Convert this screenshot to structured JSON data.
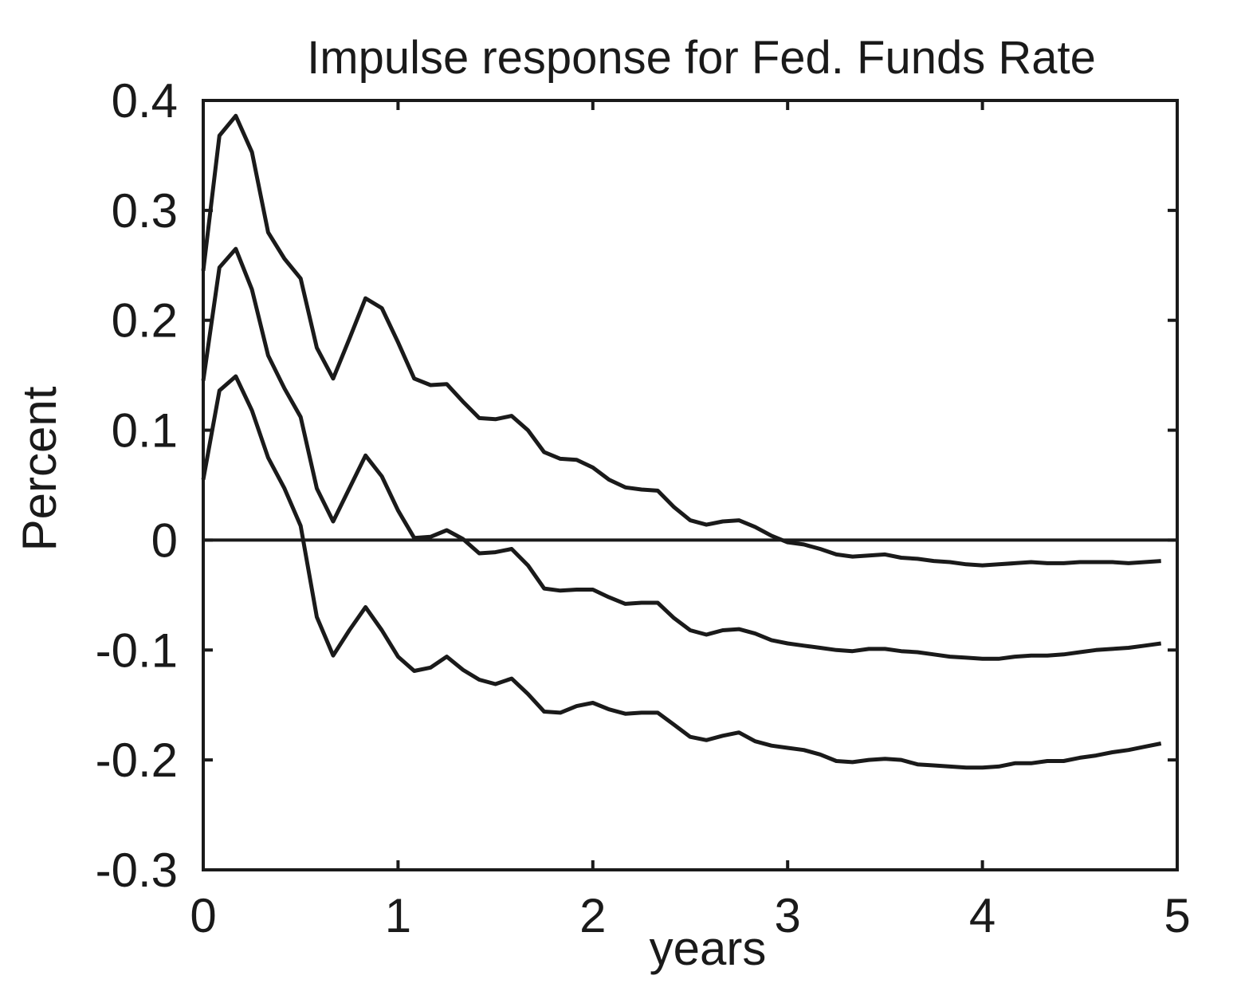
{
  "chart_data": {
    "type": "line",
    "title": "Impulse response for Fed. Funds Rate",
    "xlabel": "years",
    "ylabel": "Percent",
    "xlim": [
      0,
      5
    ],
    "ylim": [
      -0.3,
      0.4
    ],
    "xticks": [
      "0",
      "1",
      "2",
      "3",
      "4",
      "5"
    ],
    "yticks": [
      "0.4",
      "0.3",
      "0.2",
      "0.1",
      "0",
      "-0.1",
      "-0.2",
      "-0.3"
    ],
    "grid": false,
    "zero_line": true,
    "line_color": "#1a1a1a",
    "x": [
      0,
      0.083,
      0.167,
      0.25,
      0.333,
      0.417,
      0.5,
      0.583,
      0.667,
      0.75,
      0.833,
      0.917,
      1.0,
      1.083,
      1.167,
      1.25,
      1.333,
      1.417,
      1.5,
      1.583,
      1.667,
      1.75,
      1.833,
      1.917,
      2.0,
      2.083,
      2.167,
      2.25,
      2.333,
      2.417,
      2.5,
      2.583,
      2.667,
      2.75,
      2.833,
      2.917,
      3.0,
      3.083,
      3.167,
      3.25,
      3.333,
      3.417,
      3.5,
      3.583,
      3.667,
      3.75,
      3.833,
      3.917,
      4.0,
      4.083,
      4.167,
      4.25,
      4.333,
      4.417,
      4.5,
      4.583,
      4.667,
      4.75,
      4.833,
      4.917
    ],
    "series": [
      {
        "values": [
          0.245,
          0.368,
          0.386,
          0.353,
          0.28,
          0.256,
          0.238,
          0.175,
          0.147,
          0.183,
          0.22,
          0.211,
          0.18,
          0.147,
          0.141,
          0.142,
          0.126,
          0.111,
          0.11,
          0.113,
          0.1,
          0.08,
          0.074,
          0.073,
          0.066,
          0.055,
          0.048,
          0.046,
          0.045,
          0.03,
          0.018,
          0.014,
          0.017,
          0.018,
          0.012,
          0.004,
          -0.002,
          -0.004,
          -0.008,
          -0.013,
          -0.015,
          -0.014,
          -0.013,
          -0.016,
          -0.017,
          -0.019,
          -0.02,
          -0.022,
          -0.023,
          -0.022,
          -0.021,
          -0.02,
          -0.021,
          -0.021,
          -0.02,
          -0.02,
          -0.02,
          -0.021,
          -0.02,
          -0.019
        ]
      },
      {
        "values": [
          0.145,
          0.248,
          0.265,
          0.228,
          0.168,
          0.138,
          0.112,
          0.047,
          0.017,
          0.047,
          0.077,
          0.058,
          0.027,
          0.002,
          0.003,
          0.009,
          0.001,
          -0.012,
          -0.011,
          -0.008,
          -0.023,
          -0.044,
          -0.046,
          -0.045,
          -0.045,
          -0.052,
          -0.058,
          -0.057,
          -0.057,
          -0.071,
          -0.082,
          -0.086,
          -0.082,
          -0.081,
          -0.085,
          -0.091,
          -0.094,
          -0.096,
          -0.098,
          -0.1,
          -0.101,
          -0.099,
          -0.099,
          -0.101,
          -0.102,
          -0.104,
          -0.106,
          -0.107,
          -0.108,
          -0.108,
          -0.106,
          -0.105,
          -0.105,
          -0.104,
          -0.102,
          -0.1,
          -0.099,
          -0.098,
          -0.096,
          -0.094
        ]
      },
      {
        "values": [
          0.055,
          0.136,
          0.149,
          0.118,
          0.075,
          0.047,
          0.013,
          -0.07,
          -0.105,
          -0.082,
          -0.061,
          -0.082,
          -0.106,
          -0.119,
          -0.116,
          -0.106,
          -0.118,
          -0.127,
          -0.131,
          -0.126,
          -0.14,
          -0.156,
          -0.157,
          -0.151,
          -0.148,
          -0.154,
          -0.158,
          -0.157,
          -0.157,
          -0.168,
          -0.179,
          -0.182,
          -0.178,
          -0.175,
          -0.183,
          -0.187,
          -0.189,
          -0.191,
          -0.195,
          -0.201,
          -0.202,
          -0.2,
          -0.199,
          -0.2,
          -0.204,
          -0.205,
          -0.206,
          -0.207,
          -0.207,
          -0.206,
          -0.203,
          -0.203,
          -0.201,
          -0.201,
          -0.198,
          -0.196,
          -0.193,
          -0.191,
          -0.188,
          -0.185
        ]
      }
    ]
  }
}
